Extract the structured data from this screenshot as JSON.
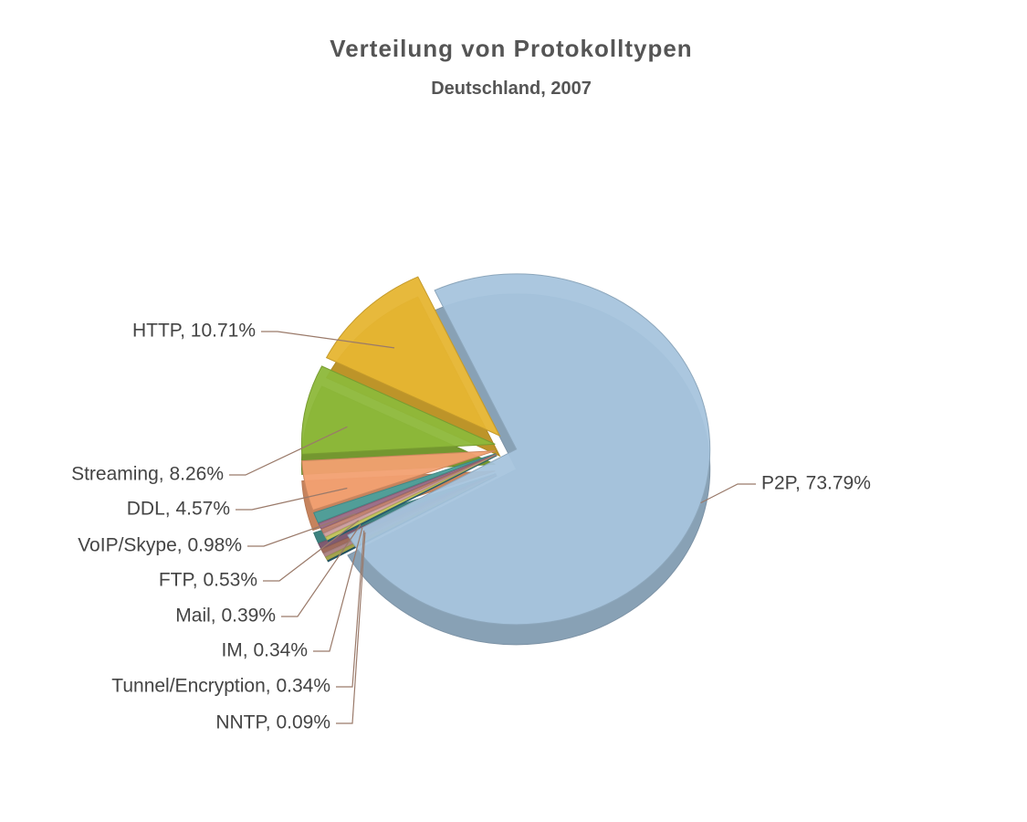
{
  "chart_data": {
    "type": "pie",
    "title": "Verteilung von Protokolltypen",
    "subtitle": "Deutschland, 2007",
    "values": [
      73.79,
      10.71,
      8.26,
      4.57,
      0.98,
      0.53,
      0.39,
      0.34,
      0.34,
      0.09
    ],
    "value_labels": [
      "P2P, 73.79%",
      "HTTP, 10.71%",
      "Streaming, 8.26%",
      "DDL, 4.57%",
      "VoIP/Skype, 0.98%",
      "FTP, 0.53%",
      "Mail, 0.39%",
      "IM, 0.34%",
      "Tunnel/Encryption, 0.34%",
      "NNTP, 0.09%"
    ],
    "colors": [
      "#a6c4dd",
      "#e6b532",
      "#8db83a",
      "#f2a071",
      "#4b9f9b",
      "#9b6f8b",
      "#c28372",
      "#d6a3a3",
      "#c9c85f",
      "#2b6a80"
    ]
  }
}
